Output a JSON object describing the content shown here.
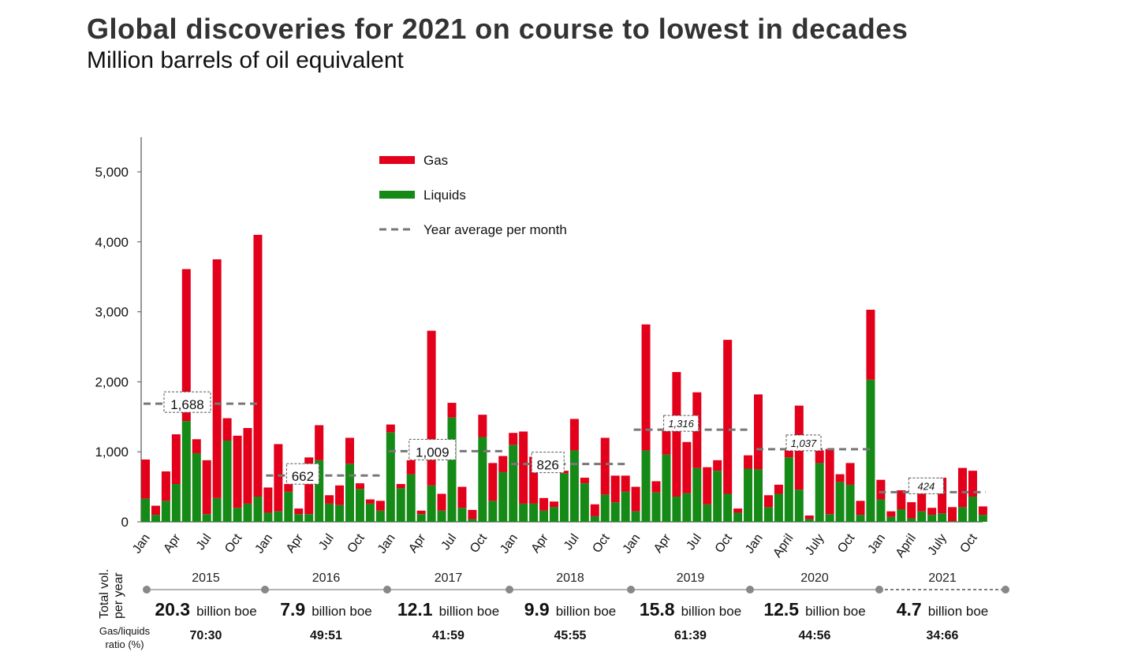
{
  "title": "Global discoveries for 2021 on course to lowest in decades",
  "subtitle": "Million barrels of oil equivalent",
  "colors": {
    "gas": "#e2001a",
    "liquids": "#158a16",
    "average": "#777777"
  },
  "chart_data": {
    "type": "bar",
    "stacked": true,
    "ylim": [
      0,
      5500
    ],
    "yticks": [
      0,
      1000,
      2000,
      3000,
      4000,
      5000
    ],
    "ytick_labels": [
      "0",
      "1,000",
      "2,000",
      "3,000",
      "4,000",
      "5,000"
    ],
    "legend": {
      "position": "top-center",
      "items": [
        {
          "key": "gas",
          "label": "Gas"
        },
        {
          "key": "liquids",
          "label": "Liquids"
        },
        {
          "key": "average",
          "label": "Year average per month"
        }
      ]
    },
    "years": [
      {
        "year": "2015",
        "total_value": "20.3",
        "total_unit": "billion boe",
        "ratio": "70:30",
        "average": 1688,
        "average_label": "1,688",
        "label_style": "normal",
        "projected": false,
        "month_labels": [
          "Jan",
          "Apr",
          "Jul",
          "Oct"
        ],
        "gas": [
          560,
          130,
          420,
          710,
          2170,
          200,
          770,
          3410,
          320,
          1030,
          1080,
          3740
        ],
        "liquids": [
          330,
          100,
          300,
          540,
          1440,
          980,
          110,
          340,
          1160,
          200,
          260,
          360
        ]
      },
      {
        "year": "2016",
        "total_value": "7.9",
        "total_unit": "billion boe",
        "ratio": "49:51",
        "average": 662,
        "average_label": "662",
        "label_style": "normal",
        "projected": false,
        "month_labels": [
          "Jan",
          "Apr",
          "Jul",
          "Oct"
        ],
        "gas": [
          360,
          960,
          110,
          80,
          810,
          500,
          120,
          280,
          370,
          80,
          60,
          140
        ],
        "liquids": [
          130,
          150,
          430,
          110,
          110,
          880,
          260,
          240,
          830,
          470,
          260,
          160
        ]
      },
      {
        "year": "2017",
        "total_value": "12.1",
        "total_unit": "billion boe",
        "ratio": "41:59",
        "average": 1009,
        "average_label": "1,009",
        "label_style": "normal",
        "projected": false,
        "month_labels": [
          "Jan",
          "Apr",
          "Jul",
          "Oct"
        ],
        "gas": [
          110,
          60,
          200,
          50,
          2210,
          240,
          210,
          300,
          130,
          320,
          540,
          230
        ],
        "liquids": [
          1280,
          480,
          680,
          110,
          520,
          160,
          1490,
          200,
          40,
          1210,
          300,
          710
        ]
      },
      {
        "year": "2018",
        "total_value": "9.9",
        "total_unit": "billion boe",
        "ratio": "45:55",
        "average": 826,
        "average_label": "826",
        "label_style": "normal",
        "projected": false,
        "month_labels": [
          "Jan",
          "Apr",
          "Jul",
          "Oct"
        ],
        "gas": [
          170,
          1030,
          670,
          180,
          80,
          40,
          450,
          80,
          170,
          810,
          380,
          230
        ],
        "liquids": [
          1100,
          260,
          260,
          160,
          210,
          690,
          1020,
          550,
          80,
          390,
          280,
          430
        ]
      },
      {
        "year": "2019",
        "total_value": "15.8",
        "total_unit": "billion boe",
        "ratio": "61:39",
        "average": 1316,
        "average_label": "1,316",
        "label_style": "italic",
        "projected": false,
        "month_labels": [
          "Jan",
          "Apr",
          "Jul",
          "Oct"
        ],
        "gas": [
          350,
          1800,
          160,
          360,
          1780,
          730,
          1080,
          530,
          150,
          2200,
          60,
          190
        ],
        "liquids": [
          150,
          1020,
          420,
          960,
          360,
          410,
          770,
          250,
          730,
          400,
          130,
          760
        ]
      },
      {
        "year": "2020",
        "total_value": "12.5",
        "total_unit": "billion boe",
        "ratio": "44:56",
        "average": 1037,
        "average_label": "1,037",
        "label_style": "italic",
        "projected": false,
        "month_labels": [
          "Jan",
          "April",
          "July",
          "Oct"
        ],
        "gas": [
          1070,
          170,
          130,
          130,
          1200,
          50,
          180,
          930,
          110,
          310,
          200,
          1000
        ],
        "liquids": [
          750,
          210,
          400,
          920,
          460,
          40,
          840,
          110,
          570,
          530,
          100,
          2030
        ]
      },
      {
        "year": "2021",
        "total_value": "4.7",
        "total_unit": "billion boe",
        "ratio": "34:66",
        "average": 424,
        "average_label": "424",
        "label_style": "italic",
        "projected": true,
        "month_labels": [
          "Jan",
          "April",
          "July",
          "Oct"
        ],
        "gas": [
          280,
          80,
          270,
          230,
          270,
          100,
          510,
          200,
          560,
          370,
          120
        ],
        "liquids": [
          320,
          70,
          180,
          50,
          150,
          100,
          120,
          10,
          210,
          360,
          100
        ]
      }
    ]
  },
  "footer": {
    "row_label": "Total vol. per year",
    "ratio_label": "Gas/liquids ratio (%)"
  }
}
